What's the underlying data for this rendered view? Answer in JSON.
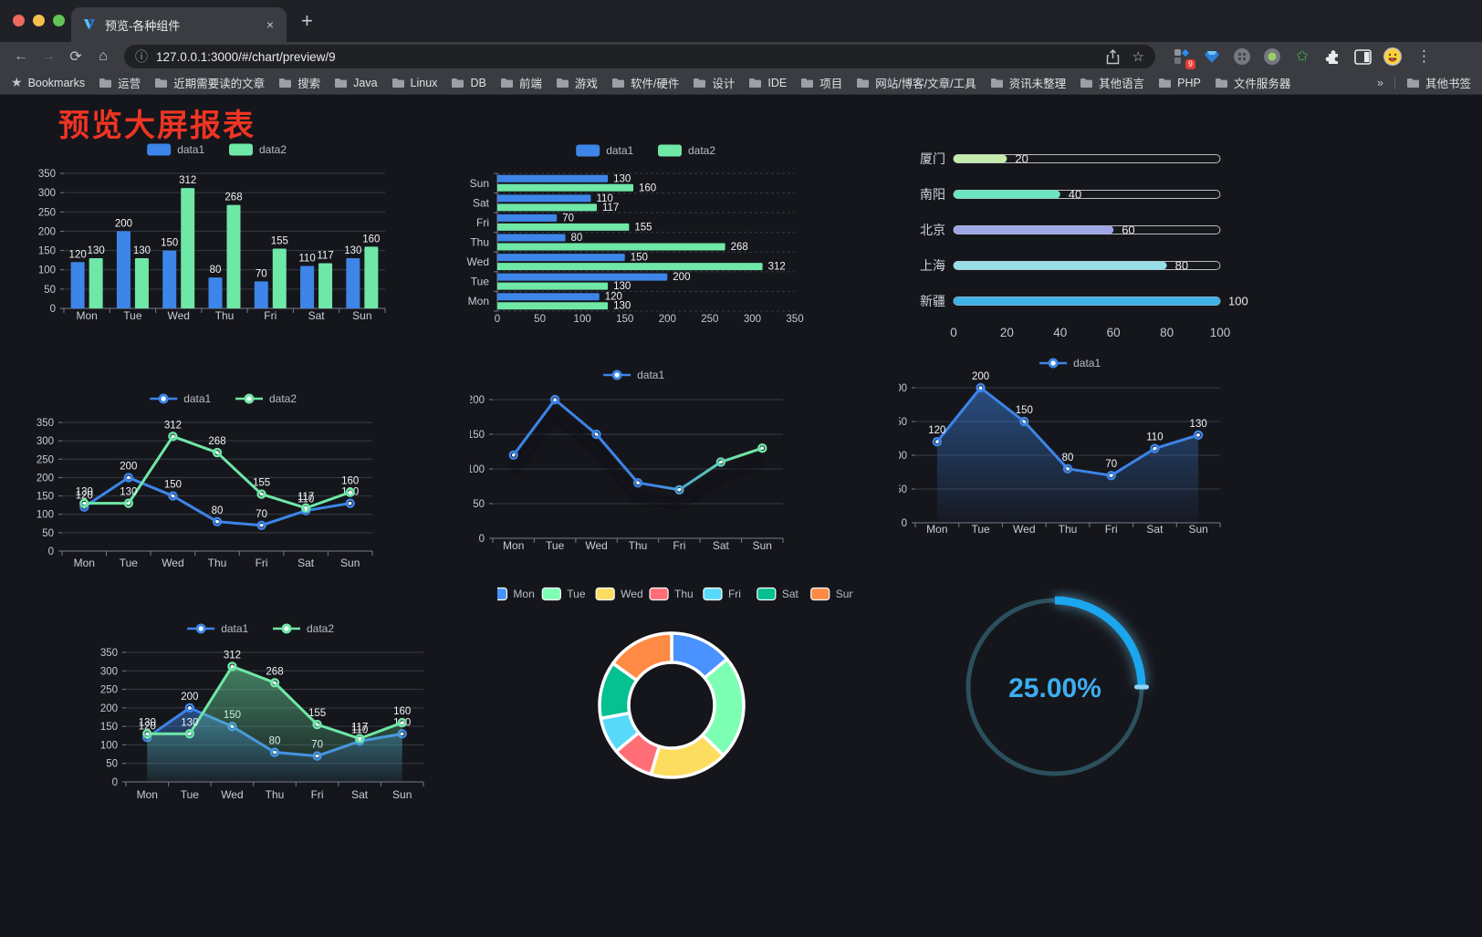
{
  "browser": {
    "tab_title": "预览-各种组件",
    "tab_close": "×",
    "new_tab": "+",
    "url": "127.0.0.1:3000/#/chart/preview/9",
    "extension_badge": "9",
    "bookmarks_label": "Bookmarks",
    "bookmarks_overflow": "»",
    "other_bookmarks": "其他书签",
    "folders": [
      "运营",
      "近期需要读的文章",
      "搜索",
      "Java",
      "Linux",
      "DB",
      "前端",
      "游戏",
      "软件/硬件",
      "设计",
      "IDE",
      "项目",
      "网站/博客/文章/工具",
      "资讯未整理",
      "其他语言",
      "PHP",
      "文件服务器"
    ]
  },
  "page": {
    "title": "预览大屏报表"
  },
  "palette": {
    "blue": "#3d85e8",
    "green": "#6fe7a7",
    "axis_text": "#c7cad3",
    "legend_text": "#b9bdc9",
    "value_label": "#f1f2f4"
  },
  "chart_data": [
    {
      "id": "c1",
      "type": "bar",
      "legend_position": "top",
      "categories": [
        "Mon",
        "Tue",
        "Wed",
        "Thu",
        "Fri",
        "Sat",
        "Sun"
      ],
      "series": [
        {
          "name": "data1",
          "color": "#3d85e8",
          "values": [
            120,
            200,
            150,
            80,
            70,
            110,
            130
          ]
        },
        {
          "name": "data2",
          "color": "#6fe7a7",
          "values": [
            130,
            130,
            312,
            268,
            155,
            117,
            160
          ]
        }
      ],
      "ylim": [
        0,
        350
      ],
      "ytick_step": 50,
      "grid": true,
      "data_labels": true
    },
    {
      "id": "c2",
      "type": "bar-horizontal",
      "legend_position": "top",
      "categories": [
        "Mon",
        "Tue",
        "Wed",
        "Thu",
        "Fri",
        "Sat",
        "Sun"
      ],
      "display_order_top_to_bottom": [
        "Sun",
        "Sat",
        "Fri",
        "Thu",
        "Wed",
        "Tue",
        "Mon"
      ],
      "series": [
        {
          "name": "data1",
          "color": "#3d85e8",
          "values": [
            120,
            200,
            150,
            80,
            70,
            110,
            130
          ]
        },
        {
          "name": "data2",
          "color": "#6fe7a7",
          "values": [
            130,
            130,
            312,
            268,
            155,
            117,
            160
          ]
        }
      ],
      "xlim": [
        0,
        350
      ],
      "xtick_step": 50,
      "data_labels": true
    },
    {
      "id": "c3",
      "type": "bar-horizontal",
      "subtype": "progress",
      "categories": [
        "厦门",
        "南阳",
        "北京",
        "上海",
        "新疆"
      ],
      "values": [
        20,
        40,
        60,
        80,
        100
      ],
      "colors": [
        "#c4ebad",
        "#6be6c1",
        "#a0a7e6",
        "#96dee8",
        "#3fb1e3"
      ],
      "xlim": [
        0,
        100
      ],
      "xticks": [
        0,
        20,
        40,
        60,
        80,
        100
      ],
      "data_labels": true
    },
    {
      "id": "c4",
      "type": "line",
      "legend_position": "top",
      "categories": [
        "Mon",
        "Tue",
        "Wed",
        "Thu",
        "Fri",
        "Sat",
        "Sun"
      ],
      "series": [
        {
          "name": "data1",
          "color": "#3d85e8",
          "values": [
            120,
            200,
            150,
            80,
            70,
            110,
            130
          ]
        },
        {
          "name": "data2",
          "color": "#6fe7a7",
          "values": [
            130,
            130,
            312,
            268,
            155,
            117,
            160
          ]
        }
      ],
      "ylim": [
        0,
        350
      ],
      "ytick_step": 50,
      "data_labels": true,
      "markers": true
    },
    {
      "id": "c5",
      "type": "line",
      "legend_position": "top",
      "categories": [
        "Mon",
        "Tue",
        "Wed",
        "Thu",
        "Fri",
        "Sat",
        "Sun"
      ],
      "series": [
        {
          "name": "data1",
          "gradient": [
            "#3d85e8",
            "#6fe7a7"
          ],
          "values": [
            120,
            200,
            150,
            80,
            70,
            110,
            130
          ]
        }
      ],
      "ylim": [
        0,
        200
      ],
      "ytick_step": 50,
      "data_labels": false,
      "markers": true,
      "shadow": true
    },
    {
      "id": "c6",
      "type": "area",
      "legend_position": "top",
      "categories": [
        "Mon",
        "Tue",
        "Wed",
        "Thu",
        "Fri",
        "Sat",
        "Sun"
      ],
      "series": [
        {
          "name": "data1",
          "color": "#3d85e8",
          "values": [
            120,
            200,
            150,
            80,
            70,
            110,
            130
          ]
        }
      ],
      "ylim": [
        0,
        200
      ],
      "ytick_step": 50,
      "data_labels": true,
      "markers": true
    },
    {
      "id": "c7",
      "type": "area",
      "legend_position": "top",
      "categories": [
        "Mon",
        "Tue",
        "Wed",
        "Thu",
        "Fri",
        "Sat",
        "Sun"
      ],
      "series": [
        {
          "name": "data1",
          "color": "#3d85e8",
          "values": [
            120,
            200,
            150,
            80,
            70,
            110,
            130
          ]
        },
        {
          "name": "data2",
          "color": "#6fe7a7",
          "values": [
            130,
            130,
            312,
            268,
            155,
            117,
            160
          ]
        }
      ],
      "ylim": [
        0,
        350
      ],
      "ytick_step": 50,
      "data_labels": true,
      "markers": true
    },
    {
      "id": "c8",
      "type": "pie",
      "subtype": "donut",
      "legend_position": "top",
      "categories": [
        "Mon",
        "Tue",
        "Wed",
        "Thu",
        "Fri",
        "Sat",
        "Sun"
      ],
      "values": [
        120,
        200,
        150,
        80,
        70,
        110,
        130
      ],
      "colors": [
        "#4992ff",
        "#7cffb2",
        "#fddd60",
        "#ff6e76",
        "#58d9f9",
        "#05c091",
        "#ff8a45"
      ],
      "border_color": "#ffffff"
    },
    {
      "id": "c9",
      "type": "gauge",
      "percent": 25,
      "label": "25.00%",
      "color": "#1aa7f0",
      "track_color": "#2b4f5d",
      "text_color": "#3daef0"
    }
  ]
}
